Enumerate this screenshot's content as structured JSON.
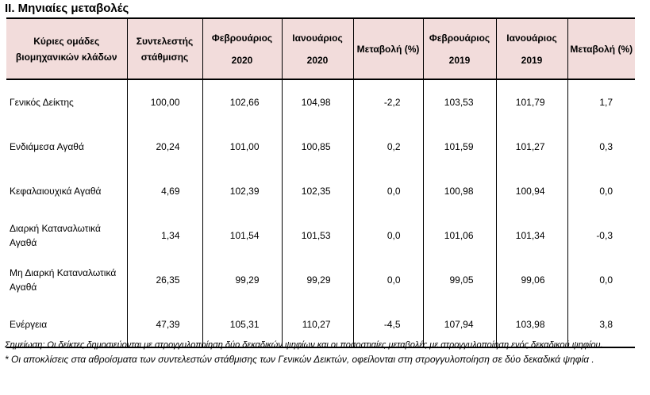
{
  "section_title": "II. Μηνιαίες μεταβολές",
  "table": {
    "headers": [
      {
        "top": "Κύριες ομάδες βιομηχανικών κλάδων",
        "bottom": ""
      },
      {
        "top": "Συντελεστής στάθμισης",
        "bottom": ""
      },
      {
        "top": "Φεβρουάριος",
        "bottom": "2020"
      },
      {
        "top": "Ιανουάριος",
        "bottom": "2020"
      },
      {
        "top": "Μεταβολή (%)",
        "bottom": ""
      },
      {
        "top": "Φεβρουάριος",
        "bottom": "2019"
      },
      {
        "top": "Ιανουάριος",
        "bottom": "2019"
      },
      {
        "top": "Μεταβολή (%)",
        "bottom": ""
      }
    ],
    "rows": [
      {
        "label": "Γενικός Δείκτης",
        "cells": [
          "100,00",
          "102,66",
          "104,98",
          "-2,2",
          "103,53",
          "101,79",
          "1,7"
        ]
      },
      {
        "label": "Ενδιάμεσα Αγαθά",
        "cells": [
          "20,24",
          "101,00",
          "100,85",
          "0,2",
          "101,59",
          "101,27",
          "0,3"
        ]
      },
      {
        "label": "Κεφαλαιουχικά Αγαθά",
        "cells": [
          "4,69",
          "102,39",
          "102,35",
          "0,0",
          "100,98",
          "100,94",
          "0,0"
        ]
      },
      {
        "label": "Διαρκή Καταναλωτικά Αγαθά",
        "cells": [
          "1,34",
          "101,54",
          "101,53",
          "0,0",
          "101,06",
          "101,34",
          "-0,3"
        ]
      },
      {
        "label": "Μη Διαρκή Καταναλωτικά Αγαθά",
        "cells": [
          "26,35",
          "99,29",
          "99,29",
          "0,0",
          "99,05",
          "99,06",
          "0,0"
        ]
      },
      {
        "label": "Ενέργεια",
        "cells": [
          "47,39",
          "105,31",
          "110,27",
          "-4,5",
          "107,94",
          "103,98",
          "3,8"
        ]
      }
    ]
  },
  "notes": {
    "note1": "Σημείωση: Οι δείκτες δημοσιεύονται με στρογγυλοποίηση δύο δεκαδικών ψηφίων και οι ποσοστιαίες μεταβολές με στρογγυλοποίηση ενός δεκαδικού ψηφίου.",
    "note2": "* Οι αποκλίσεις στα αθροίσματα των συντελεστών στάθμισης των Γενικών Δεικτών, οφείλονται στη στρογγυλοποίηση σε δύο δεκαδικά ψηφία ."
  }
}
